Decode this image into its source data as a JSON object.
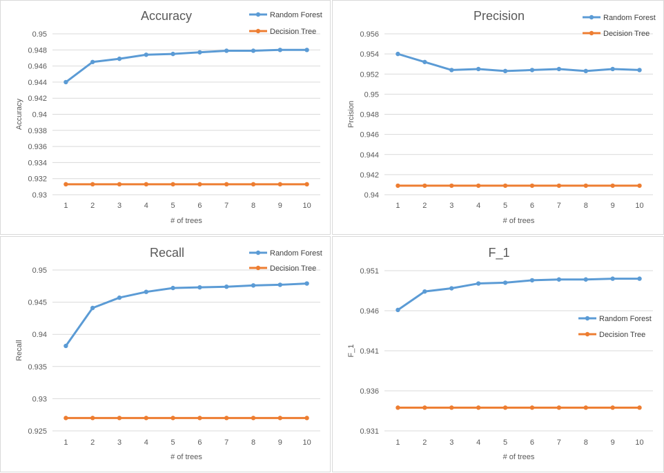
{
  "colors": {
    "random_forest": "#5b9bd5",
    "decision_tree": "#ed7d31",
    "grid": "#d9d9d9",
    "text": "#595959"
  },
  "chart_data": [
    {
      "type": "line",
      "title": "Accuracy",
      "xlabel": "# of trees",
      "ylabel": "Accuracy",
      "categories": [
        "1",
        "2",
        "3",
        "4",
        "5",
        "6",
        "7",
        "8",
        "9",
        "10"
      ],
      "ylim": [
        0.93,
        0.95
      ],
      "yticks": [
        "0.95",
        "0.948",
        "0.946",
        "0.944",
        "0.942",
        "0.94",
        "0.938",
        "0.936",
        "0.934",
        "0.932",
        "0.93"
      ],
      "legend_position": "top-right",
      "grid": true,
      "series": [
        {
          "name": "Random Forest",
          "values": [
            0.944,
            0.9465,
            0.9469,
            0.9474,
            0.9475,
            0.9477,
            0.9479,
            0.9479,
            0.948,
            0.948
          ]
        },
        {
          "name": "Decision Tree",
          "values": [
            0.9313,
            0.9313,
            0.9313,
            0.9313,
            0.9313,
            0.9313,
            0.9313,
            0.9313,
            0.9313,
            0.9313
          ]
        }
      ]
    },
    {
      "type": "line",
      "title": "Precision",
      "xlabel": "# of trees",
      "ylabel": "Prcision",
      "categories": [
        "1",
        "2",
        "3",
        "4",
        "5",
        "6",
        "7",
        "8",
        "9",
        "10"
      ],
      "ylim": [
        0.94,
        0.956
      ],
      "yticks": [
        "0.956",
        "0.954",
        "0.952",
        "0.95",
        "0.948",
        "0.946",
        "0.944",
        "0.942",
        "0.94"
      ],
      "legend_position": "top-right",
      "grid": true,
      "series": [
        {
          "name": "Random Forest",
          "values": [
            0.954,
            0.9532,
            0.9524,
            0.9525,
            0.9523,
            0.9524,
            0.9525,
            0.9523,
            0.9525,
            0.9524
          ]
        },
        {
          "name": "Decision Tree",
          "values": [
            0.9409,
            0.9409,
            0.9409,
            0.9409,
            0.9409,
            0.9409,
            0.9409,
            0.9409,
            0.9409,
            0.9409
          ]
        }
      ]
    },
    {
      "type": "line",
      "title": "Recall",
      "xlabel": "# of trees",
      "ylabel": "Recall",
      "categories": [
        "1",
        "2",
        "3",
        "4",
        "5",
        "6",
        "7",
        "8",
        "9",
        "10"
      ],
      "ylim": [
        0.925,
        0.95
      ],
      "yticks": [
        "0.95",
        "0.945",
        "0.94",
        "0.935",
        "0.93",
        "0.925"
      ],
      "legend_position": "top-right",
      "grid": true,
      "series": [
        {
          "name": "Random Forest",
          "values": [
            0.9382,
            0.9441,
            0.9457,
            0.9466,
            0.9472,
            0.9473,
            0.9474,
            0.9476,
            0.9477,
            0.9479
          ]
        },
        {
          "name": "Decision Tree",
          "values": [
            0.927,
            0.927,
            0.927,
            0.927,
            0.927,
            0.927,
            0.927,
            0.927,
            0.927,
            0.927
          ]
        }
      ]
    },
    {
      "type": "line",
      "title": "F_1",
      "xlabel": "# of trees",
      "ylabel": "F_1",
      "categories": [
        "1",
        "2",
        "3",
        "4",
        "5",
        "6",
        "7",
        "8",
        "9",
        "10"
      ],
      "ylim": [
        0.931,
        0.951
      ],
      "yticks": [
        "0.951",
        "0.946",
        "0.941",
        "0.936",
        "0.931"
      ],
      "legend_position": "right",
      "grid": true,
      "series": [
        {
          "name": "Random Forest",
          "values": [
            0.9461,
            0.9484,
            0.9488,
            0.9494,
            0.9495,
            0.9498,
            0.9499,
            0.9499,
            0.95,
            0.95
          ]
        },
        {
          "name": "Decision Tree",
          "values": [
            0.9339,
            0.9339,
            0.9339,
            0.9339,
            0.9339,
            0.9339,
            0.9339,
            0.9339,
            0.9339,
            0.9339
          ]
        }
      ]
    }
  ]
}
